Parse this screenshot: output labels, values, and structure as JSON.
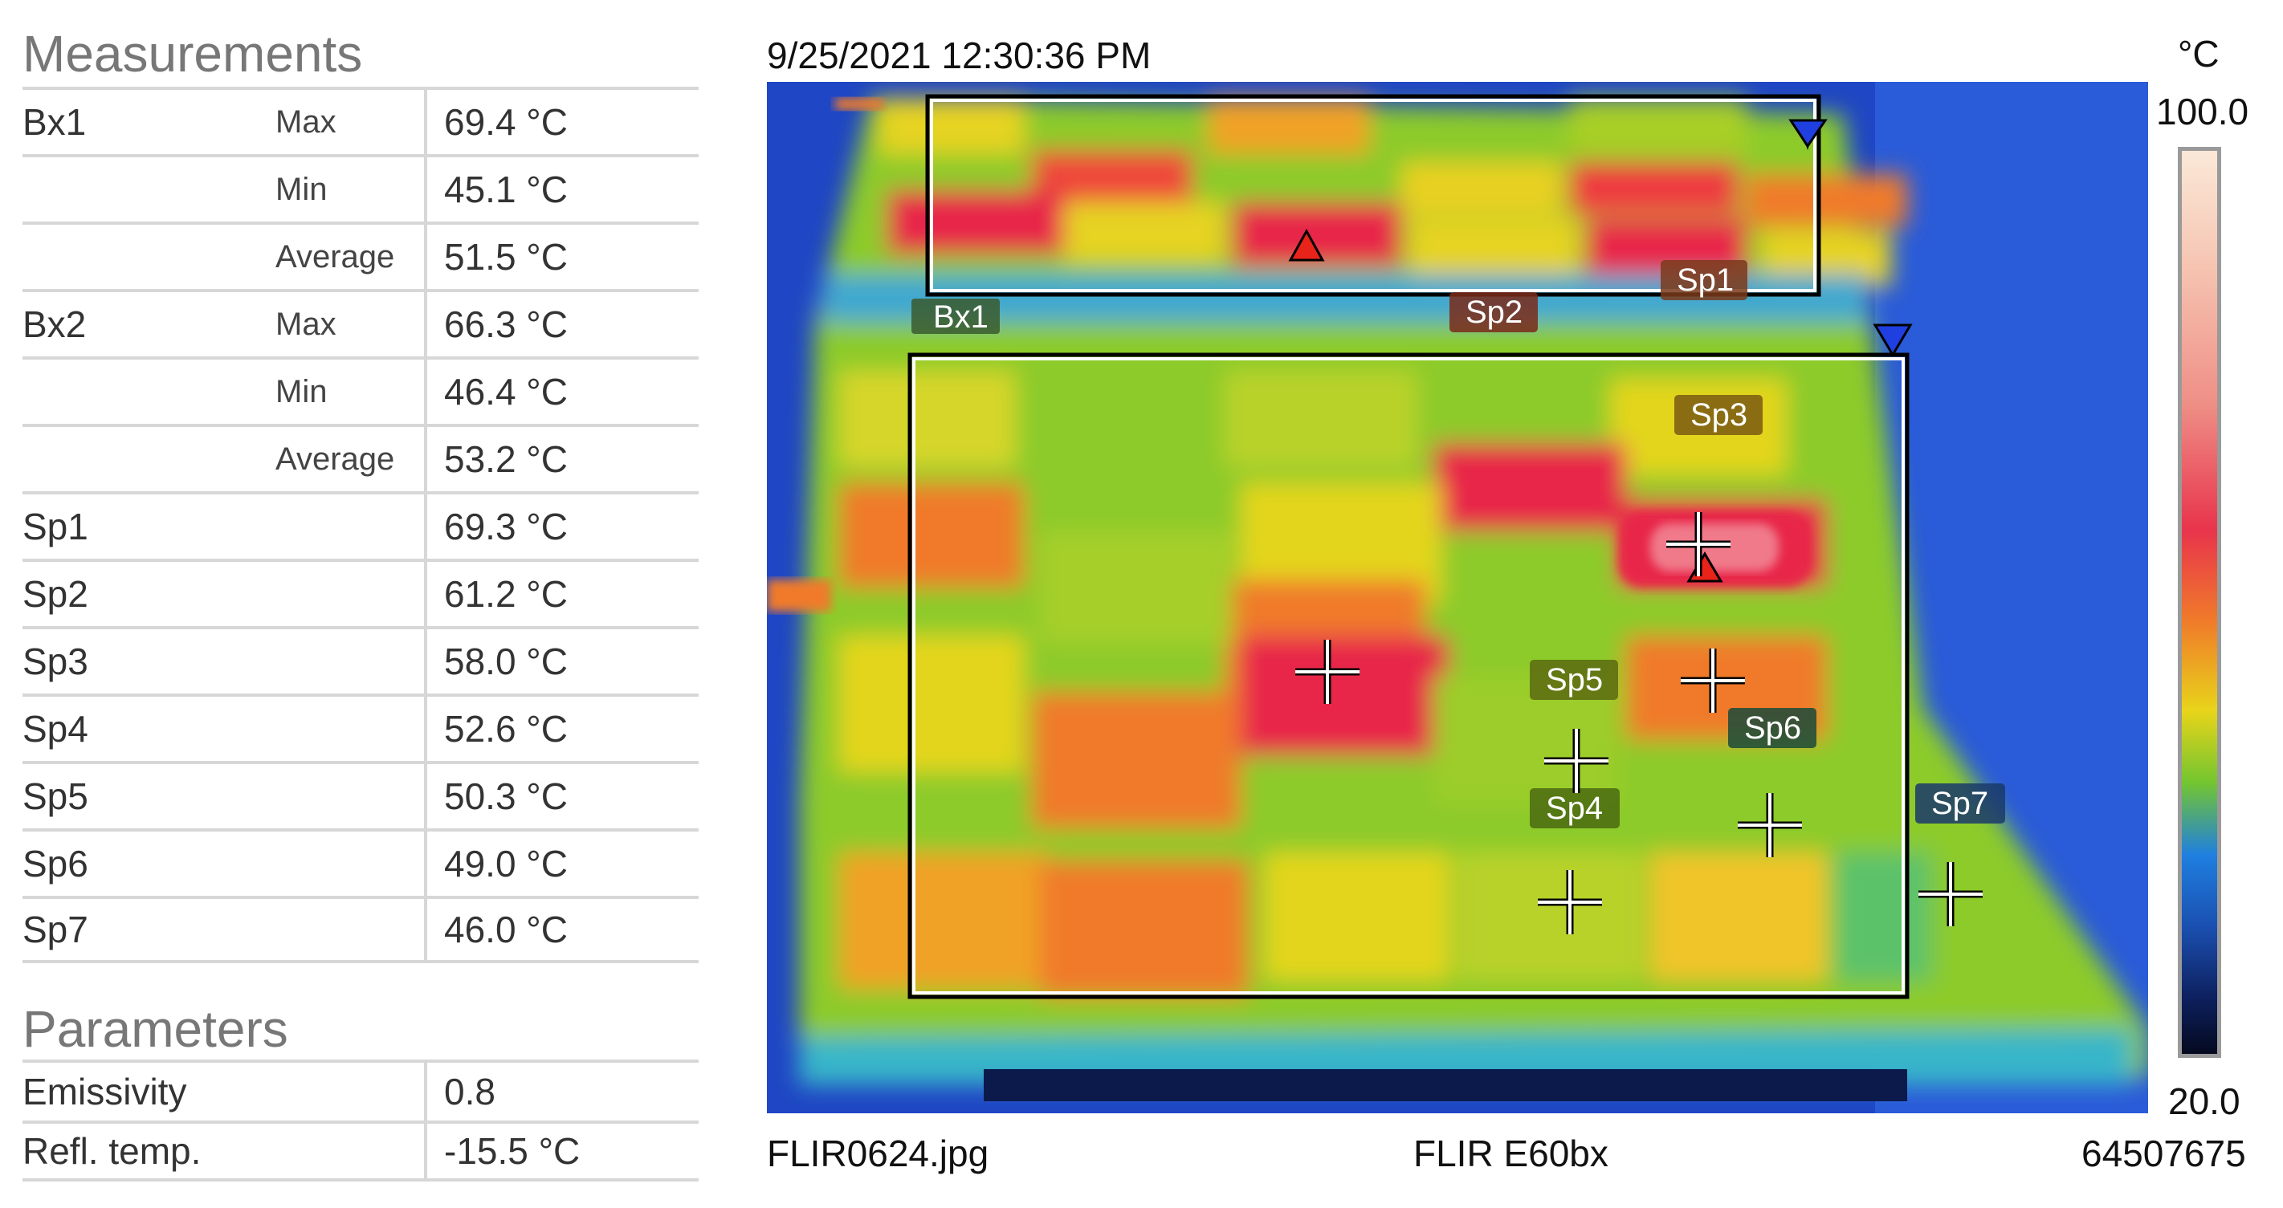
{
  "measurements": {
    "title": "Measurements",
    "rows": [
      {
        "name": "Bx1",
        "sub": "Max",
        "value": "69.4 °C"
      },
      {
        "name": "",
        "sub": "Min",
        "value": "45.1 °C"
      },
      {
        "name": "",
        "sub": "Average",
        "value": "51.5 °C"
      },
      {
        "name": "Bx2",
        "sub": "Max",
        "value": "66.3 °C"
      },
      {
        "name": "",
        "sub": "Min",
        "value": "46.4 °C"
      },
      {
        "name": "",
        "sub": "Average",
        "value": "53.2 °C"
      },
      {
        "name": "Sp1",
        "sub": "",
        "value": "69.3 °C"
      },
      {
        "name": "Sp2",
        "sub": "",
        "value": "61.2 °C"
      },
      {
        "name": "Sp3",
        "sub": "",
        "value": "58.0 °C"
      },
      {
        "name": "Sp4",
        "sub": "",
        "value": "52.6 °C"
      },
      {
        "name": "Sp5",
        "sub": "",
        "value": "50.3 °C"
      },
      {
        "name": "Sp6",
        "sub": "",
        "value": "49.0 °C"
      },
      {
        "name": "Sp7",
        "sub": "",
        "value": "46.0 °C"
      }
    ]
  },
  "parameters": {
    "title": "Parameters",
    "rows": [
      {
        "name": "Emissivity",
        "value": "0.8"
      },
      {
        "name": "Refl. temp.",
        "value": "-15.5 °C"
      }
    ]
  },
  "image": {
    "timestamp": "9/25/2021 12:30:36 PM",
    "unit": "°C",
    "scale_max": "100.0",
    "scale_min": "20.0",
    "file_name": "FLIR0624.jpg",
    "camera_model": "FLIR E60bx",
    "serial": "64507675"
  },
  "overlay_labels": {
    "bx1": "Bx1",
    "sp1": "Sp1",
    "sp2": "Sp2",
    "sp3": "Sp3",
    "sp4": "Sp4",
    "sp5": "Sp5",
    "sp6": "Sp6",
    "sp7": "Sp7"
  },
  "colors": {
    "hot": "#e8264a",
    "warm": "#f07a2a",
    "mid": "#e3d51e",
    "cool": "#7cc52f",
    "cold": "#1a4fc0",
    "max_marker": "#e8231a",
    "min_marker": "#1f3fe0"
  }
}
